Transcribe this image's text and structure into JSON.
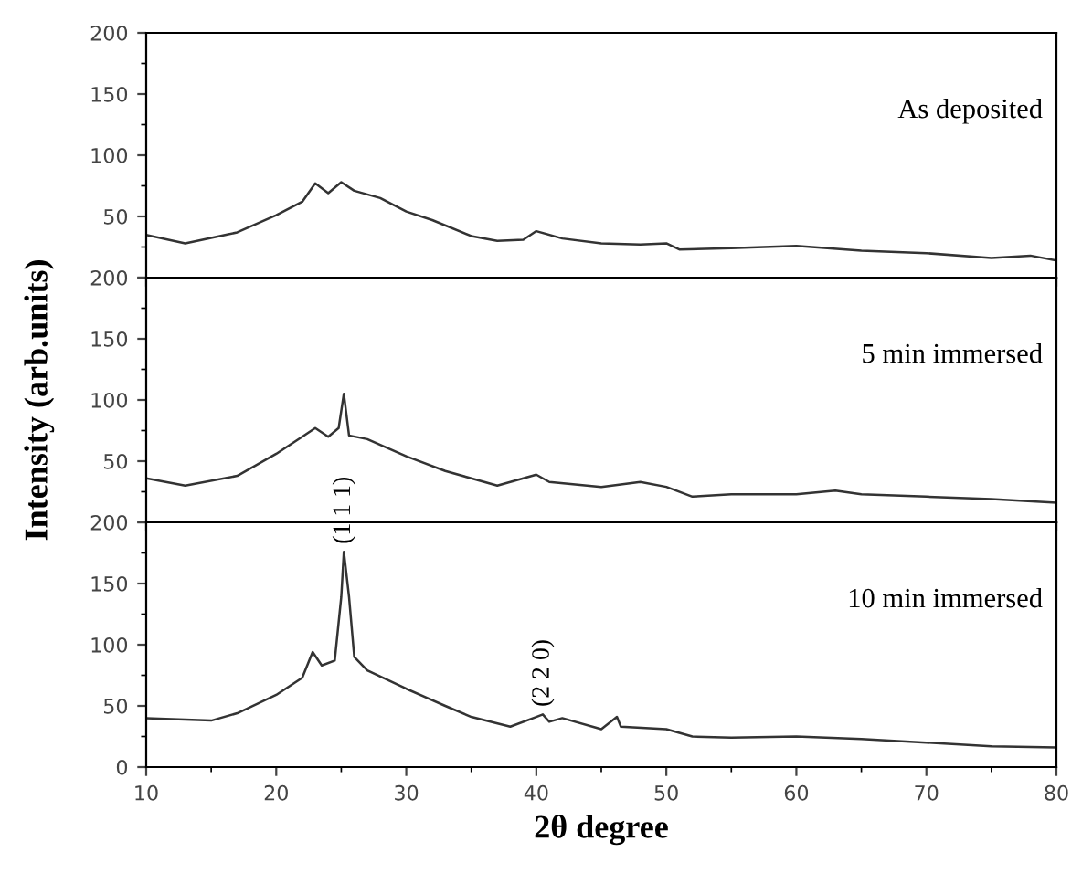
{
  "chart_data": [
    {
      "type": "line",
      "annotations": [
        "As deposited"
      ],
      "tick_labels": "y",
      "xlim": [
        10,
        80
      ],
      "ylim": [
        0,
        200
      ],
      "yticks": [
        {
          "value": 0,
          "label": null
        },
        50,
        100,
        150,
        200
      ],
      "grid": false,
      "legend": false,
      "series": [
        {
          "color": "#333333",
          "x": [
            10,
            13,
            17,
            20,
            22,
            23,
            24,
            25,
            26,
            28,
            30,
            32,
            35,
            37,
            39,
            40,
            42,
            45,
            48,
            50,
            51,
            55,
            60,
            65,
            70,
            75,
            78,
            80
          ],
          "values": [
            35,
            28,
            37,
            51,
            62,
            77,
            69,
            78,
            71,
            65,
            54,
            47,
            34,
            30,
            31,
            38,
            32,
            28,
            27,
            28,
            23,
            24,
            26,
            22,
            20,
            16,
            18,
            14
          ]
        }
      ]
    },
    {
      "type": "line",
      "annotations": [
        "5 min immersed"
      ],
      "ylabel": "Intensity (arb.units)",
      "tick_labels": "y",
      "xlim": [
        10,
        80
      ],
      "ylim": [
        0,
        200
      ],
      "yticks": [
        {
          "value": 0,
          "label": null
        },
        50,
        100,
        150,
        200
      ],
      "grid": false,
      "legend": false,
      "series": [
        {
          "color": "#333333",
          "x": [
            10,
            13,
            17,
            20,
            22,
            23,
            24,
            24.8,
            25.2,
            25.6,
            27,
            30,
            33,
            35,
            37,
            40,
            41,
            45,
            48,
            50,
            52,
            55,
            60,
            63,
            65,
            70,
            75,
            80
          ],
          "values": [
            36,
            30,
            38,
            56,
            70,
            77,
            70,
            77,
            105,
            71,
            68,
            54,
            42,
            36,
            30,
            39,
            33,
            29,
            33,
            29,
            21,
            23,
            23,
            26,
            23,
            21,
            19,
            16
          ]
        }
      ]
    },
    {
      "type": "line",
      "annotations": [
        "10 min immersed",
        {
          "text": "(1 1 1)",
          "x": 25.2,
          "y": 176
        },
        {
          "text": "(2 2 0)",
          "x": 40.5,
          "y": 43
        }
      ],
      "xlabel": "2θ degree",
      "xlim": [
        10,
        80
      ],
      "xticks": [
        10,
        20,
        30,
        40,
        50,
        60,
        70,
        80
      ],
      "ylim": [
        0,
        200
      ],
      "yticks": [
        0,
        50,
        100,
        150,
        200
      ],
      "grid": false,
      "legend": false,
      "series": [
        {
          "color": "#333333",
          "x": [
            10,
            15,
            17,
            20,
            22,
            22.8,
            23.5,
            24.5,
            25.0,
            25.2,
            25.6,
            26,
            27,
            30,
            33,
            35,
            38,
            40,
            40.5,
            41,
            42,
            45,
            46.2,
            46.5,
            50,
            52,
            55,
            60,
            65,
            70,
            75,
            80
          ],
          "values": [
            40,
            38,
            44,
            59,
            73,
            94,
            83,
            87,
            139,
            176,
            139,
            90,
            79,
            64,
            50,
            41,
            33,
            41,
            43,
            37,
            40,
            31,
            41,
            33,
            31,
            25,
            24,
            25,
            23,
            20,
            17,
            16
          ]
        }
      ]
    }
  ]
}
